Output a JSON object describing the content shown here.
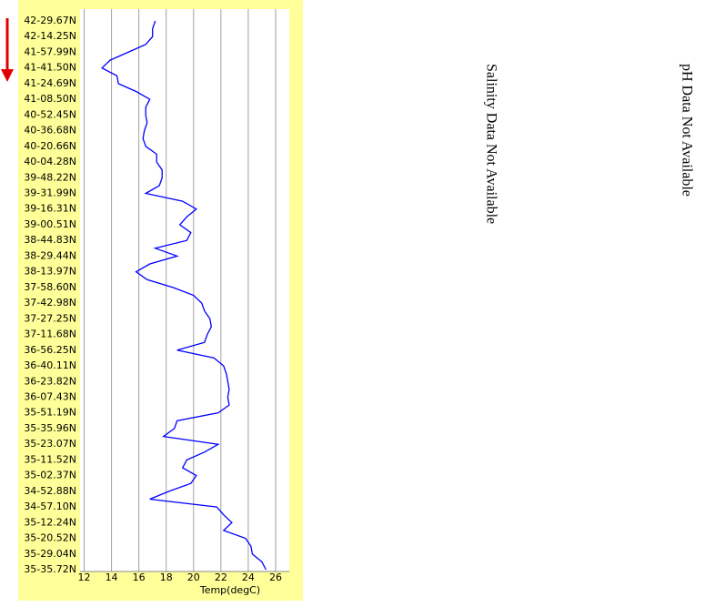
{
  "chart_data": {
    "type": "line",
    "xlabel": "Temp(degC)",
    "categories": [
      "42-29.67N",
      null,
      "42-14.25N",
      null,
      "41-57.99N",
      null,
      "41-41.50N",
      null,
      "41-24.69N",
      null,
      "41-08.50N",
      null,
      "40-52.45N",
      null,
      "40-36.68N",
      null,
      "40-20.66N",
      null,
      "40-04.28N",
      null,
      "39-48.22N",
      null,
      "39-31.99N",
      null,
      "39-16.31N",
      null,
      "39-00.51N",
      null,
      "38-44.83N",
      null,
      "38-29.44N",
      null,
      "38-13.97N",
      null,
      "37-58.60N",
      null,
      "37-42.98N",
      null,
      "37-27.25N",
      null,
      "37-11.68N",
      null,
      "36-56.25N",
      null,
      "36-40.11N",
      null,
      "36-23.82N",
      null,
      "36-07.43N",
      null,
      "35-51.19N",
      null,
      "35-35.96N",
      null,
      "35-23.07N",
      null,
      "35-11.52N",
      null,
      "35-02.37N",
      null,
      "34-52.88N",
      null,
      "34-57.10N",
      null,
      "35-12.24N",
      null,
      "35-20.52N",
      null,
      "35-29.04N",
      null,
      "35-35.72N"
    ],
    "series": [
      {
        "color": "#0000ff",
        "values": [
          17.2,
          17.0,
          17.0,
          16.5,
          15.2,
          13.9,
          13.3,
          14.4,
          14.5,
          15.8,
          16.8,
          16.5,
          16.5,
          16.6,
          16.4,
          16.3,
          16.5,
          17.3,
          17.3,
          17.7,
          17.7,
          17.5,
          16.5,
          19.2,
          20.2,
          19.5,
          19.0,
          19.8,
          19.5,
          17.2,
          18.8,
          16.8,
          15.8,
          16.6,
          18.5,
          20.0,
          20.6,
          20.8,
          21.2,
          21.3,
          21.0,
          20.8,
          18.8,
          21.5,
          22.2,
          22.4,
          22.5,
          22.6,
          22.5,
          22.6,
          21.8,
          18.8,
          18.6,
          17.8,
          21.8,
          20.8,
          19.5,
          19.2,
          20.2,
          19.8,
          18.2,
          16.8,
          21.7,
          22.2,
          22.8,
          22.2,
          23.8,
          24.2,
          24.3,
          25.0,
          25.3
        ]
      }
    ],
    "xlim": [
      11.7,
      27
    ],
    "xticks": [
      12,
      14,
      16,
      18,
      20,
      22,
      24,
      26
    ],
    "grid": true,
    "annotations": [
      "Salinity Data Not Available",
      "pH Data Not Available"
    ]
  }
}
